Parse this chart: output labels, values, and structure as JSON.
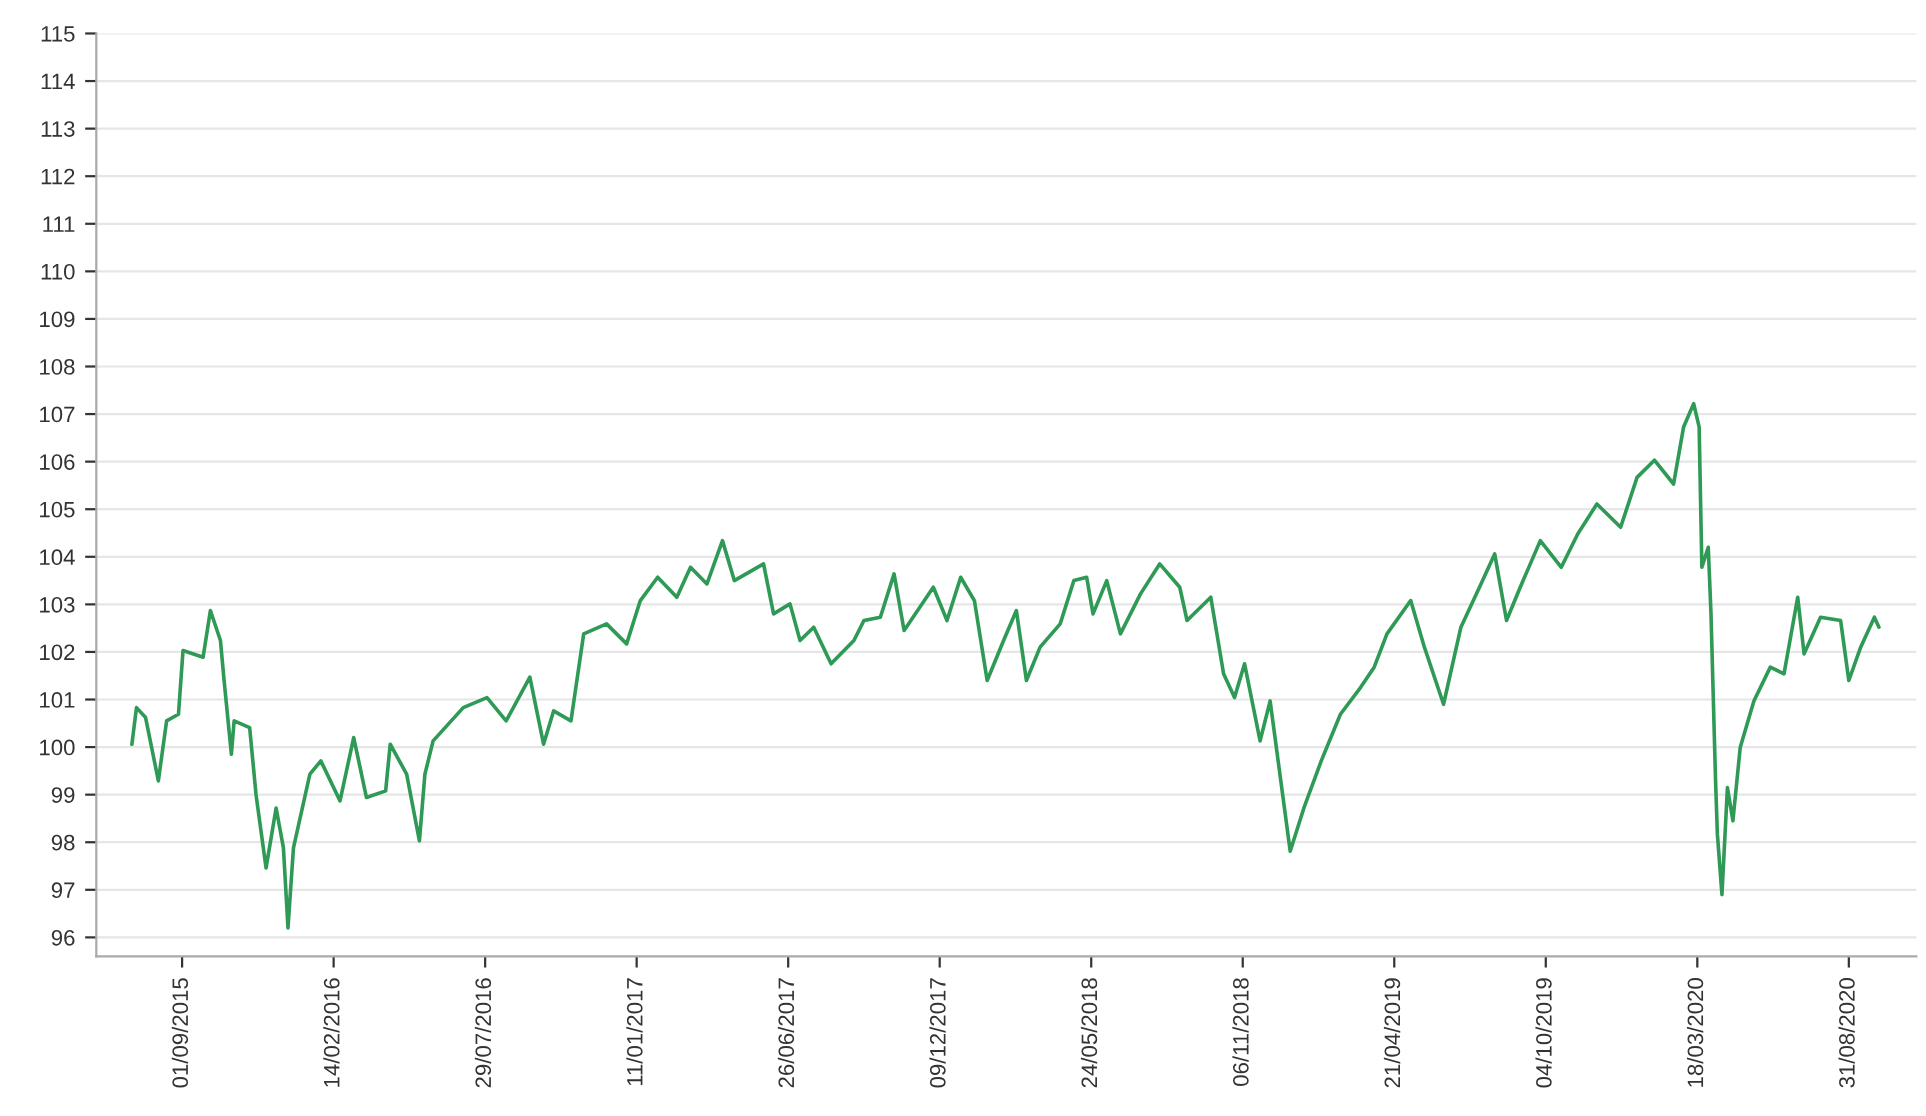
{
  "chart_data": {
    "type": "line",
    "grid": "y",
    "legend": false,
    "marker": "none",
    "line_style": "solid",
    "xlim": [
      "2015-05-30",
      "2020-11-13"
    ],
    "ylim": [
      95.6,
      115
    ],
    "yticks": [
      96,
      97,
      98,
      99,
      100,
      101,
      102,
      103,
      104,
      105,
      106,
      107,
      108,
      109,
      110,
      111,
      112,
      113,
      114,
      115
    ],
    "xticks": [
      {
        "value": "2015-09-01",
        "label": "01/09/2015"
      },
      {
        "value": "2016-02-14",
        "label": "14/02/2016"
      },
      {
        "value": "2016-07-29",
        "label": "29/07/2016"
      },
      {
        "value": "2017-01-11",
        "label": "11/01/2017"
      },
      {
        "value": "2017-06-26",
        "label": "26/06/2017"
      },
      {
        "value": "2017-12-09",
        "label": "09/12/2017"
      },
      {
        "value": "2018-05-24",
        "label": "24/05/2018"
      },
      {
        "value": "2018-11-06",
        "label": "06/11/2018"
      },
      {
        "value": "2019-04-21",
        "label": "21/04/2019"
      },
      {
        "value": "2019-10-04",
        "label": "04/10/2019"
      },
      {
        "value": "2020-03-18",
        "label": "18/03/2020"
      },
      {
        "value": "2020-08-31",
        "label": "31/08/2020"
      }
    ],
    "series": [
      {
        "color": "#2e9a56",
        "x": [
          "2015-07-08",
          "2015-07-13",
          "2015-07-23",
          "2015-08-06",
          "2015-08-15",
          "2015-08-28",
          "2015-09-02",
          "2015-09-24",
          "2015-10-02",
          "2015-10-13",
          "2015-10-17",
          "2015-10-25",
          "2015-10-28",
          "2015-11-14",
          "2015-11-21",
          "2015-12-02",
          "2015-12-13",
          "2015-12-21",
          "2015-12-26",
          "2016-01-01",
          "2016-01-19",
          "2016-01-31",
          "2016-02-21",
          "2016-03-07",
          "2016-03-21",
          "2016-04-11",
          "2016-04-16",
          "2016-05-04",
          "2016-05-18",
          "2016-05-24",
          "2016-06-02",
          "2016-07-05",
          "2016-07-31",
          "2016-08-21",
          "2016-09-16",
          "2016-10-01",
          "2016-10-12",
          "2016-10-31",
          "2016-11-14",
          "2016-12-09",
          "2016-12-31",
          "2017-01-15",
          "2017-02-03",
          "2017-02-24",
          "2017-03-11",
          "2017-03-29",
          "2017-04-15",
          "2017-04-28",
          "2017-05-30",
          "2017-06-10",
          "2017-06-28",
          "2017-07-09",
          "2017-07-24",
          "2017-08-12",
          "2017-09-06",
          "2017-09-17",
          "2017-10-05",
          "2017-10-20",
          "2017-10-31",
          "2017-12-02",
          "2017-12-17",
          "2018-01-01",
          "2018-01-16",
          "2018-01-30",
          "2018-02-17",
          "2018-03-03",
          "2018-03-14",
          "2018-03-29",
          "2018-04-20",
          "2018-05-05",
          "2018-05-19",
          "2018-05-26",
          "2018-06-10",
          "2018-06-25",
          "2018-07-17",
          "2018-08-07",
          "2018-08-29",
          "2018-09-06",
          "2018-10-02",
          "2018-10-16",
          "2018-10-28",
          "2018-11-08",
          "2018-11-25",
          "2018-12-06",
          "2018-12-28",
          "2019-01-12",
          "2019-01-31",
          "2019-02-21",
          "2019-03-15",
          "2019-03-30",
          "2019-04-13",
          "2019-05-09",
          "2019-05-24",
          "2019-06-14",
          "2019-07-03",
          "2019-07-25",
          "2019-08-09",
          "2019-08-22",
          "2019-09-06",
          "2019-09-28",
          "2019-10-21",
          "2019-11-08",
          "2019-11-29",
          "2019-12-25",
          "2020-01-12",
          "2020-01-31",
          "2020-02-21",
          "2020-03-03",
          "2020-03-14",
          "2020-03-20",
          "2020-03-23",
          "2020-03-30",
          "2020-04-02",
          "2020-04-07",
          "2020-04-09",
          "2020-04-14",
          "2020-04-20",
          "2020-04-26",
          "2020-05-04",
          "2020-05-19",
          "2020-06-06",
          "2020-06-21",
          "2020-07-06",
          "2020-07-13",
          "2020-07-31",
          "2020-08-22",
          "2020-08-31",
          "2020-09-13",
          "2020-09-28",
          "2020-10-03"
        ],
        "values": [
          100.06,
          100.83,
          100.62,
          99.29,
          100.55,
          100.69,
          102.03,
          101.89,
          102.87,
          102.24,
          101.4,
          99.85,
          100.55,
          100.41,
          99.0,
          97.46,
          98.72,
          97.88,
          96.2,
          97.88,
          99.43,
          99.71,
          98.87,
          100.2,
          98.94,
          99.08,
          100.06,
          99.43,
          98.03,
          99.43,
          100.13,
          100.83,
          101.04,
          100.55,
          101.47,
          100.06,
          100.76,
          100.55,
          102.38,
          102.59,
          102.17,
          103.08,
          103.57,
          103.15,
          103.78,
          103.43,
          104.34,
          103.5,
          103.85,
          102.8,
          103.01,
          102.24,
          102.52,
          101.75,
          102.24,
          102.66,
          102.73,
          103.64,
          102.45,
          103.36,
          102.66,
          103.57,
          103.08,
          101.4,
          102.24,
          102.87,
          101.4,
          102.1,
          102.59,
          103.5,
          103.57,
          102.8,
          103.5,
          102.38,
          103.22,
          103.85,
          103.36,
          102.66,
          103.15,
          101.54,
          101.04,
          101.75,
          100.13,
          100.97,
          97.81,
          98.72,
          99.71,
          100.69,
          101.25,
          101.68,
          102.38,
          103.08,
          102.1,
          100.9,
          102.52,
          103.43,
          104.06,
          102.66,
          103.36,
          104.34,
          103.78,
          104.48,
          105.11,
          104.62,
          105.67,
          106.03,
          105.53,
          106.73,
          107.22,
          106.73,
          103.78,
          104.2,
          102.8,
          99.29,
          98.17,
          96.9,
          99.15,
          98.45,
          99.99,
          100.97,
          101.68,
          101.54,
          103.15,
          101.96,
          102.73,
          102.66,
          101.4,
          102.1,
          102.73,
          102.52
        ]
      }
    ]
  }
}
